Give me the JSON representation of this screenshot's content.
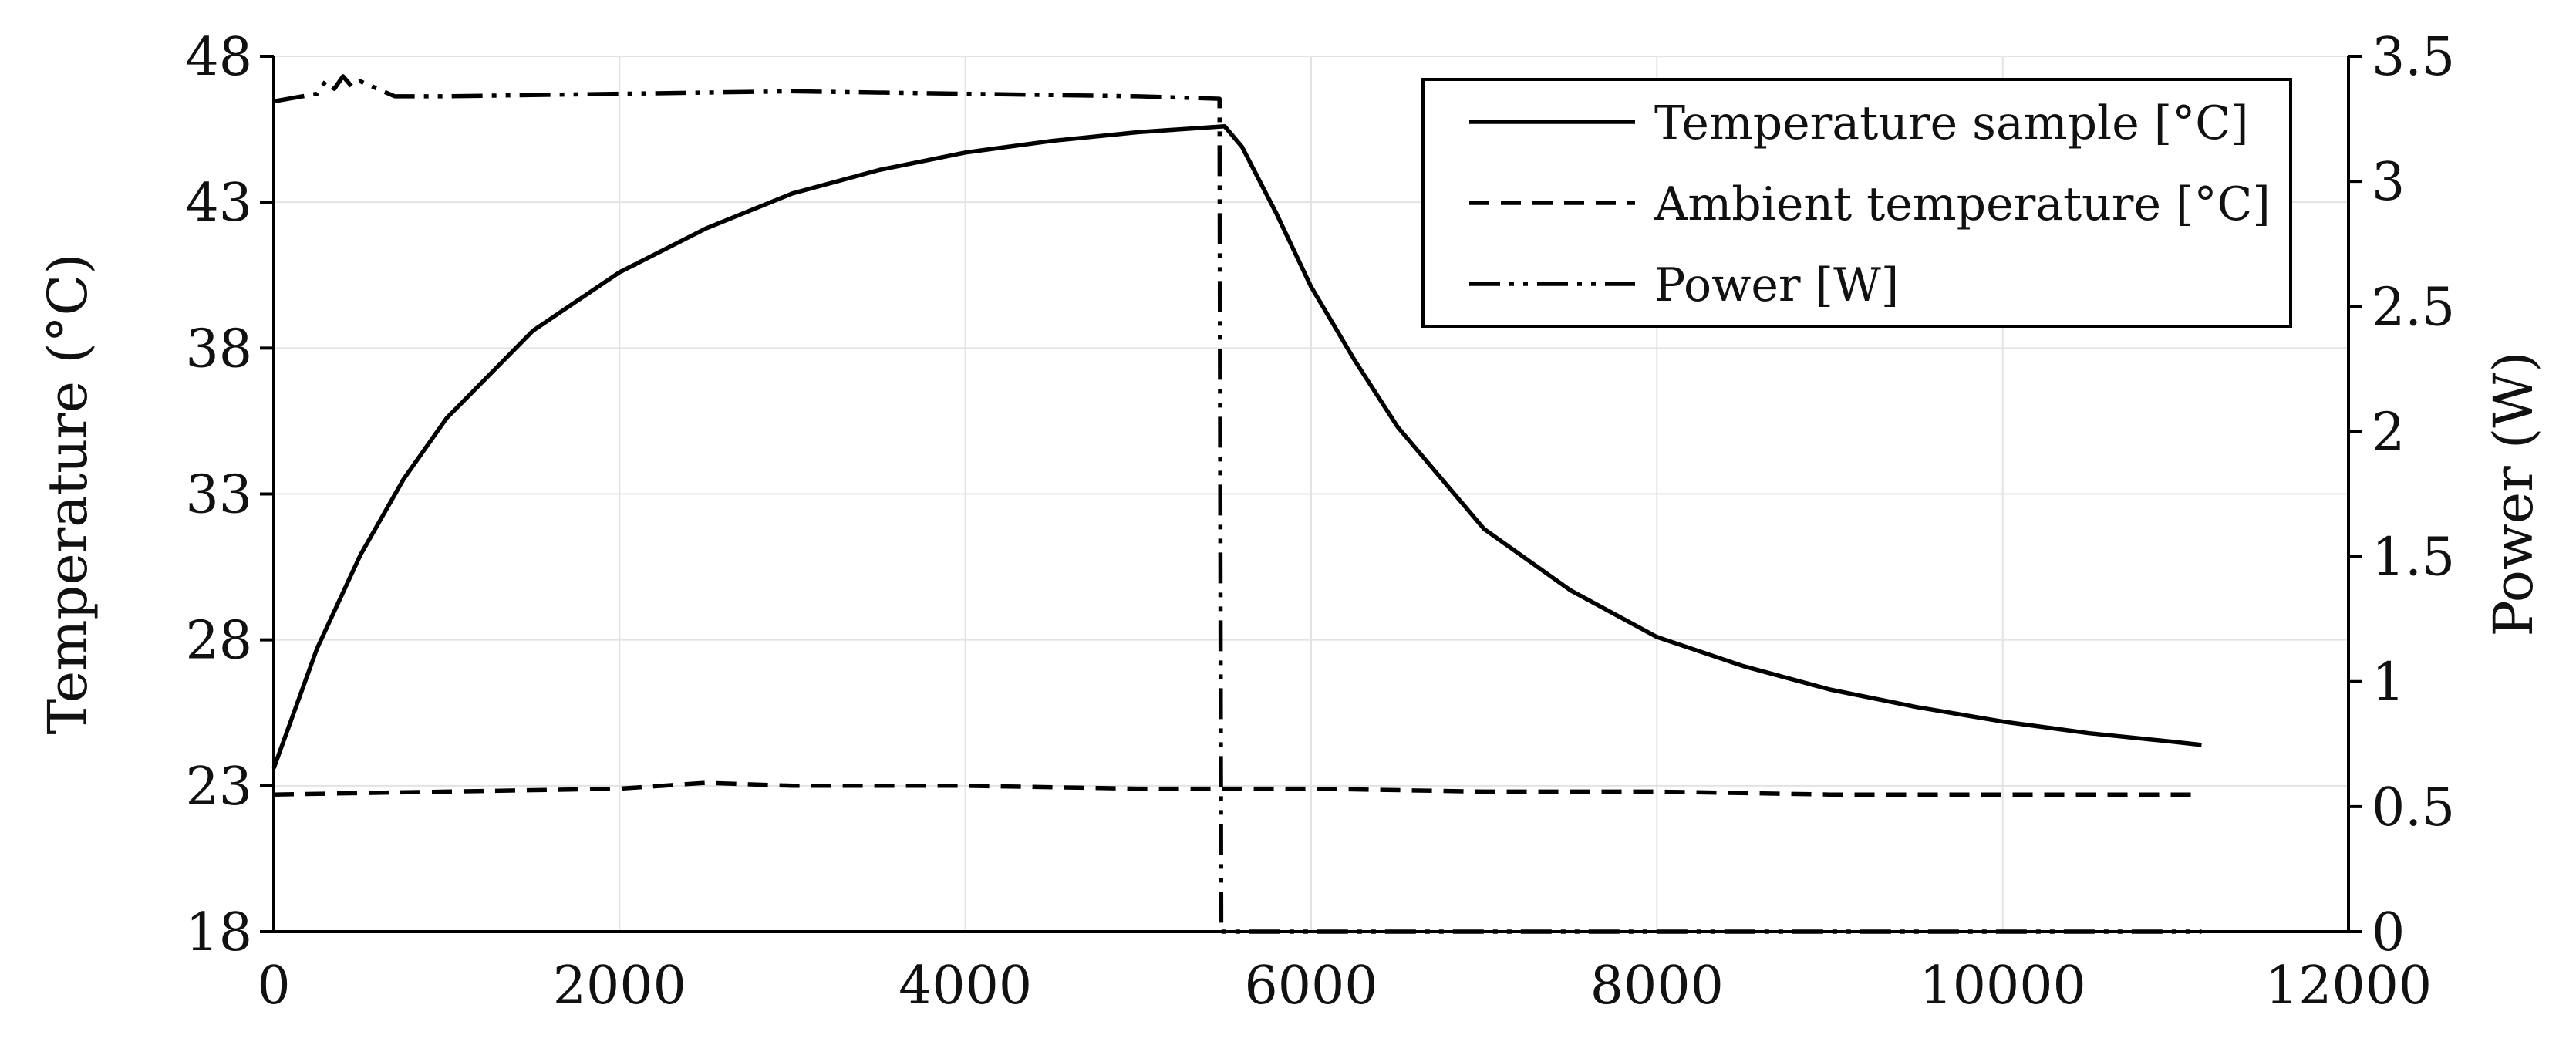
{
  "chart_data": {
    "type": "line",
    "title": "",
    "xlabel": "",
    "ylabel_left": "Temperature (°C)",
    "ylabel_right": "Power (W)",
    "xlim": [
      0,
      12000
    ],
    "ylim_left": [
      18,
      48
    ],
    "ylim_right": [
      0,
      3.5
    ],
    "x_ticks": [
      "0",
      "2000",
      "4000",
      "6000",
      "8000",
      "10000",
      "12000"
    ],
    "y_left_ticks": [
      "18",
      "23",
      "28",
      "33",
      "38",
      "43",
      "48"
    ],
    "y_right_ticks": [
      "0",
      "0.5",
      "1",
      "1.5",
      "2",
      "2.5",
      "3",
      "3.5"
    ],
    "grid": true,
    "legend_position": "top-right",
    "series": [
      {
        "name": "Temperature sample [°C]",
        "axis": "left",
        "dash": "solid",
        "x": [
          0,
          250,
          500,
          750,
          1000,
          1500,
          2000,
          2500,
          3000,
          3500,
          4000,
          4500,
          5000,
          5500,
          5600,
          5800,
          6000,
          6250,
          6500,
          7000,
          7500,
          8000,
          8500,
          9000,
          9500,
          10000,
          10500,
          11000,
          11150
        ],
        "values": [
          23.6,
          27.7,
          30.9,
          33.5,
          35.6,
          38.6,
          40.6,
          42.1,
          43.3,
          44.1,
          44.7,
          45.1,
          45.4,
          45.6,
          44.9,
          42.6,
          40.1,
          37.6,
          35.3,
          31.8,
          29.7,
          28.1,
          27.1,
          26.3,
          25.7,
          25.2,
          24.8,
          24.5,
          24.4
        ]
      },
      {
        "name": "Ambient temperature [°C]",
        "axis": "left",
        "dash": "dashed",
        "x": [
          0,
          1000,
          2000,
          2500,
          3000,
          4000,
          5000,
          5500,
          6000,
          7000,
          8000,
          9000,
          10000,
          11000,
          11150
        ],
        "values": [
          22.7,
          22.8,
          22.9,
          23.1,
          23.0,
          23.0,
          22.9,
          22.9,
          22.9,
          22.8,
          22.8,
          22.7,
          22.7,
          22.7,
          22.7
        ]
      },
      {
        "name": "Power [W]",
        "axis": "right",
        "dash": "dash-dot-dot",
        "x": [
          0,
          250,
          300,
          350,
          400,
          450,
          500,
          700,
          1000,
          2000,
          3000,
          4000,
          5000,
          5470,
          5480,
          5500,
          11150
        ],
        "values": [
          3.32,
          3.35,
          3.4,
          3.37,
          3.42,
          3.38,
          3.4,
          3.34,
          3.34,
          3.35,
          3.36,
          3.35,
          3.34,
          3.33,
          0.0,
          0.0,
          0.0
        ]
      }
    ]
  }
}
